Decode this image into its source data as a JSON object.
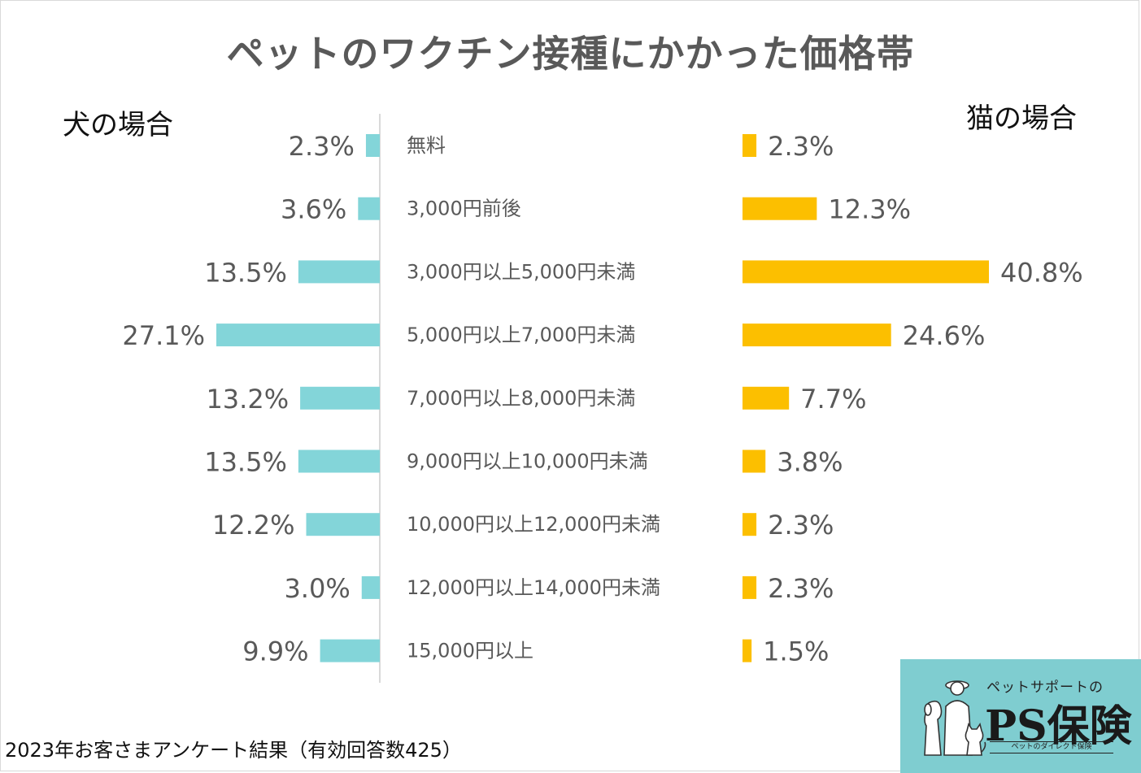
{
  "title": "ペットのワクチン接種にかかった価格帯",
  "dog_label": "犬の場合",
  "cat_label": "猫の場合",
  "footnote": "2023年お客さまアンケート結果（有効回答数425）",
  "logo": {
    "subtitle": "ペットサポートの",
    "name": "PS保険",
    "tagline": "ペットのダイレクト保険"
  },
  "colors": {
    "dog": "#83d5d9",
    "cat": "#fcbf00",
    "title": "#595959",
    "label": "#595959",
    "axis": "#d9d9d9",
    "logo_bg": "#7fcdd0"
  },
  "chart_data": {
    "type": "bar",
    "title": "ペットのワクチン接種にかかった価格帯",
    "categories": [
      "無料",
      "3,000円前後",
      "3,000円以上5,000円未満",
      "5,000円以上7,000円未満",
      "7,000円以上8,000円未満",
      "9,000円以上10,000円未満",
      "10,000円以上12,000円未満",
      "12,000円以上14,000円未満",
      "15,000円以上"
    ],
    "series": [
      {
        "name": "犬の場合",
        "values": [
          2.3,
          3.6,
          13.5,
          27.1,
          13.2,
          13.5,
          12.2,
          3.0,
          9.9
        ],
        "labels": [
          "2.3%",
          "3.6%",
          "13.5%",
          "27.1%",
          "13.2%",
          "13.5%",
          "12.2%",
          "3.0%",
          "9.9%"
        ]
      },
      {
        "name": "猫の場合",
        "values": [
          2.3,
          12.3,
          40.8,
          24.6,
          7.7,
          3.8,
          2.3,
          2.3,
          1.5
        ],
        "labels": [
          "2.3%",
          "12.3%",
          "40.8%",
          "24.6%",
          "7.7%",
          "3.8%",
          "2.3%",
          "2.3%",
          "1.5%"
        ]
      }
    ],
    "unit": "%"
  }
}
